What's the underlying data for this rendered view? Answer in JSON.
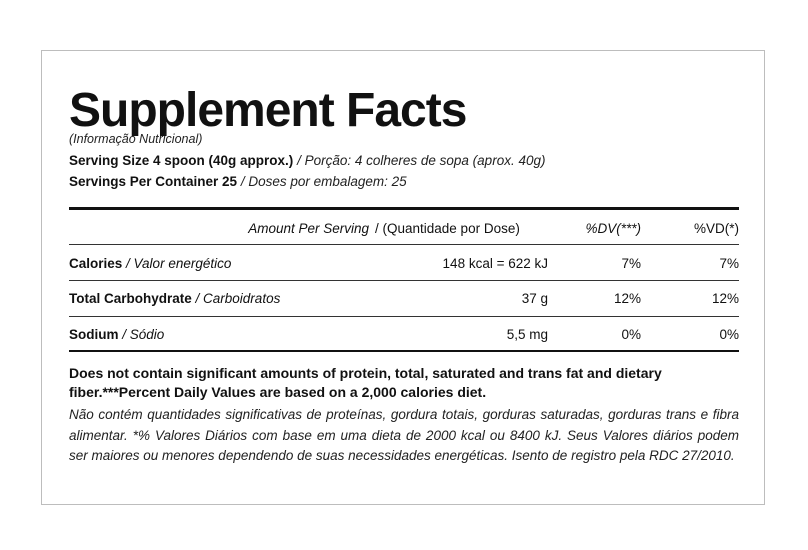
{
  "label": {
    "title": "Supplement Facts",
    "subtitle": "(Informação Nutricional)",
    "serving_size": {
      "label": "Serving Size 4 spoon (40g approx.)",
      "translation": "/ Porção: 4 colheres de sopa (aprox. 40g)"
    },
    "servings_per_container": {
      "label": "Servings Per Container 25",
      "translation": "/ Doses por embalagem: 25"
    }
  },
  "table": {
    "header": {
      "amount_per_serving": "Amount Per Serving",
      "quantity_per_dose": "/ (Quantidade por Dose)",
      "dv": "%DV(***)",
      "vd": "%VD(*)"
    },
    "rows": [
      {
        "name": "Calories",
        "translation": "/ Valor energético",
        "amount": "148 kcal = 622 kJ",
        "dv": "7%",
        "vd": "7%"
      },
      {
        "name": "Total Carbohydrate",
        "translation": "/ Carboidratos",
        "amount": "37 g",
        "dv": "12%",
        "vd": "12%"
      },
      {
        "name": "Sodium",
        "translation": "/ Sódio",
        "amount": "5,5 mg",
        "dv": "0%",
        "vd": "0%"
      }
    ]
  },
  "footnotes": {
    "english": "Does not contain significant amounts of protein, total, saturated and trans fat and dietary fiber.***Percent Daily Values are based on a 2,000 calories diet.",
    "portuguese": "Não contém quantidades significativas de proteínas, gordura totais, gorduras saturadas, gorduras trans e fibra alimentar. *% Valores Diários com base em uma dieta de  2000 kcal ou  8400 kJ. Seus Valores diários podem ser maiores ou menores dependendo de suas necessidades energéticas. Isento de registro pela RDC 27/2010."
  }
}
